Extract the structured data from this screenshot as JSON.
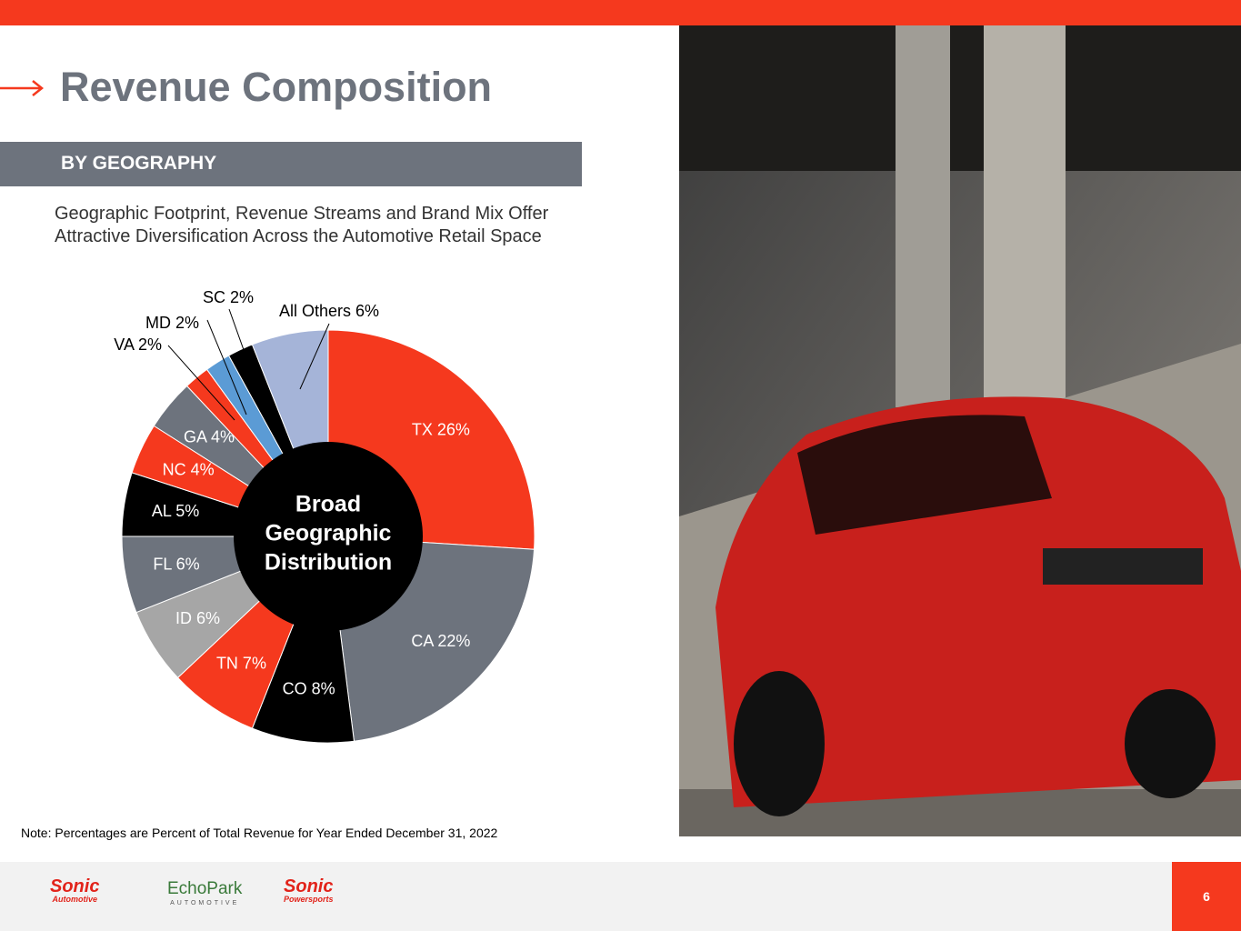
{
  "header": {
    "title": "Revenue Composition",
    "section": "BY GEOGRAPHY",
    "subtitle": [
      "Geographic Footprint, Revenue Streams and Brand Mix Offer",
      "Attractive Diversification Across the Automotive Retail Space"
    ]
  },
  "chart_data": {
    "type": "pie",
    "values": [
      26,
      22,
      8,
      7,
      6,
      6,
      5,
      4,
      4,
      2,
      2,
      2,
      6
    ],
    "value_labels": [
      "TX 26%",
      "CA 22%",
      "CO 8%",
      "TN 7%",
      "ID 6%",
      "FL 6%",
      "AL 5%",
      "NC 4%",
      "GA 4%",
      "VA 2%",
      "MD 2%",
      "SC 2%",
      "All Others 6%"
    ],
    "colors": [
      "#f5391e",
      "#6d737d",
      "#000000",
      "#f5391e",
      "#a6a6a6",
      "#6d737d",
      "#000000",
      "#f5391e",
      "#6d737d",
      "#f5391e",
      "#5b9bd5",
      "#000000",
      "#a5b4d8"
    ],
    "center_label": [
      "Broad",
      "Geographic",
      "Distribution"
    ]
  },
  "footer": {
    "note": "Note: Percentages are Percent of Total Revenue for Year Ended December 31, 2022",
    "page": "6",
    "logos": [
      "Sonic",
      "Automotive",
      "EchoPark",
      "AUTOMOTIVE",
      "Sonic",
      "Powersports"
    ]
  }
}
